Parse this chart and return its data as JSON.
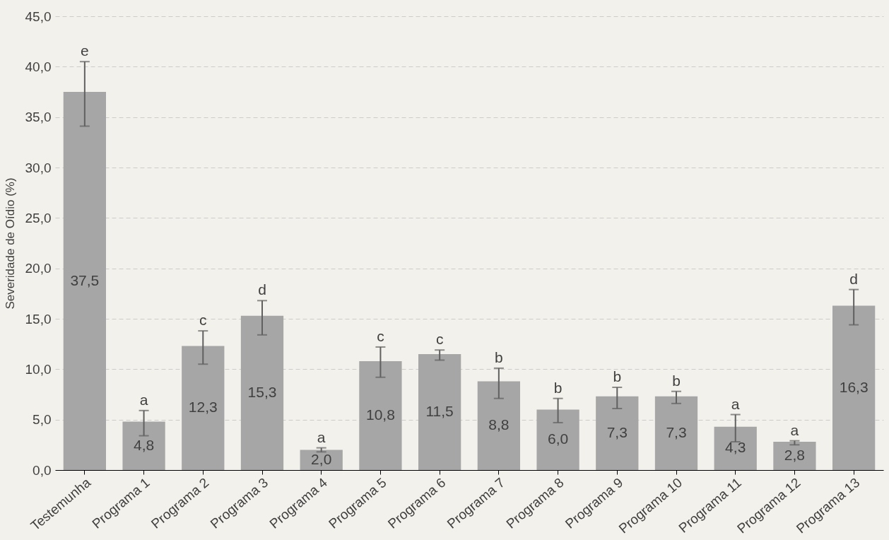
{
  "chart_data": {
    "type": "bar",
    "ylabel": "Severidade de Oídio (%)",
    "categories": [
      "Testemunha",
      "Programa 1",
      "Programa 2",
      "Programa 3",
      "Programa 4",
      "Programa 5",
      "Programa 6",
      "Programa 7",
      "Programa 8",
      "Programa 9",
      "Programa 10",
      "Programa 11",
      "Programa 12",
      "Programa 13"
    ],
    "series": [
      {
        "color": "#a6a6a6",
        "values": [
          37.5,
          4.8,
          12.3,
          15.3,
          2.0,
          10.8,
          11.5,
          8.8,
          6.0,
          7.3,
          7.3,
          4.3,
          2.8,
          16.3
        ],
        "value_labels": [
          "37,5",
          "4,8",
          "12,3",
          "15,3",
          "2,0",
          "10,8",
          "11,5",
          "8,8",
          "6,0",
          "7,3",
          "7,3",
          "4,3",
          "2,8",
          "16,3"
        ],
        "errors": [
          [
            34.1,
            40.5
          ],
          [
            3.4,
            5.9
          ],
          [
            10.5,
            13.8
          ],
          [
            13.4,
            16.8
          ],
          [
            1.8,
            2.2
          ],
          [
            9.2,
            12.2
          ],
          [
            10.9,
            11.9
          ],
          [
            7.1,
            10.1
          ],
          [
            4.7,
            7.1
          ],
          [
            6.1,
            8.2
          ],
          [
            6.6,
            7.8
          ],
          [
            2.8,
            5.5
          ],
          [
            2.5,
            2.9
          ],
          [
            14.4,
            17.9
          ]
        ]
      }
    ],
    "ylim": [
      0,
      45
    ],
    "yticks": [
      {
        "value": 0,
        "label": "0,0"
      },
      {
        "value": 5,
        "label": "5,0"
      },
      {
        "value": 10,
        "label": "10,0"
      },
      {
        "value": 15,
        "label": "15,0"
      },
      {
        "value": 20,
        "label": "20,0"
      },
      {
        "value": 25,
        "label": "25,0"
      },
      {
        "value": 30,
        "label": "30,0"
      },
      {
        "value": 35,
        "label": "35,0"
      },
      {
        "value": 40,
        "label": "40,0"
      },
      {
        "value": 45,
        "label": "45,0"
      }
    ],
    "grid": "y",
    "annotations": [
      {
        "text": "e",
        "x": "Testemunha",
        "y": 40.5
      },
      {
        "text": "a",
        "x": "Programa 1",
        "y": 5.9
      },
      {
        "text": "c",
        "x": "Programa 2",
        "y": 13.8
      },
      {
        "text": "d",
        "x": "Programa 3",
        "y": 16.8
      },
      {
        "text": "a",
        "x": "Programa 4",
        "y": 2.2
      },
      {
        "text": "c",
        "x": "Programa 5",
        "y": 12.2
      },
      {
        "text": "c",
        "x": "Programa 6",
        "y": 11.9
      },
      {
        "text": "b",
        "x": "Programa 7",
        "y": 10.1
      },
      {
        "text": "b",
        "x": "Programa 8",
        "y": 7.1
      },
      {
        "text": "b",
        "x": "Programa 9",
        "y": 8.2
      },
      {
        "text": "b",
        "x": "Programa 10",
        "y": 7.8
      },
      {
        "text": "a",
        "x": "Programa 11",
        "y": 5.5
      },
      {
        "text": "a",
        "x": "Programa 12",
        "y": 2.9
      },
      {
        "text": "d",
        "x": "Programa 13",
        "y": 17.9
      }
    ]
  }
}
